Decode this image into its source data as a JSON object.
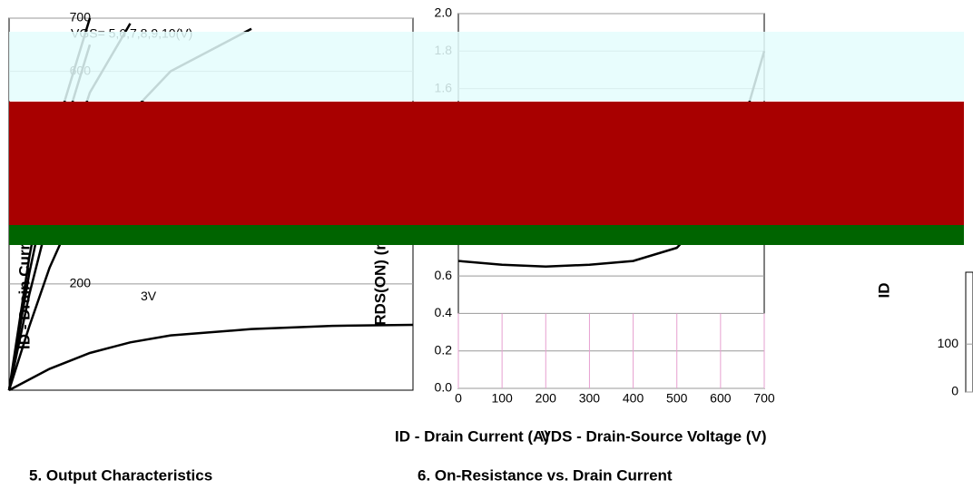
{
  "chart_data": [
    {
      "type": "line",
      "annotation": "VGS= 5,6,7,8,9,10(V)",
      "ylabel": "ID - Drain Current (A)",
      "xlabel": "ID - Drain Current (A)",
      "caption": "5. Output Characteristics",
      "xlim": [
        0,
        10
      ],
      "ylim": [
        0,
        700
      ],
      "yticks": [
        200,
        600,
        700
      ],
      "x": [
        0,
        0.5,
        1,
        2,
        3,
        4,
        6,
        8,
        10
      ],
      "series": [
        {
          "color": "#000000",
          "values": [
            0,
            250,
            450,
            700,
            null,
            null,
            null,
            null,
            null
          ]
        },
        {
          "color": "#000000",
          "values": [
            0,
            220,
            400,
            650,
            null,
            null,
            null,
            null,
            null
          ]
        },
        {
          "color": "#000000",
          "values": [
            0,
            180,
            330,
            560,
            690,
            null,
            null,
            null,
            null
          ]
        },
        {
          "color": "#000000",
          "values": [
            0,
            120,
            230,
            400,
            520,
            600,
            680,
            null,
            null
          ]
        },
        {
          "name": "3V",
          "color": "#000000",
          "values": [
            0,
            20,
            40,
            70,
            90,
            103,
            115,
            121,
            123
          ]
        }
      ]
    },
    {
      "type": "line",
      "ylabel": "RDS(ON) (mΩ)",
      "xlabel": "VDS - Drain-Source Voltage (V)",
      "caption": "6. On-Resistance vs. Drain Current",
      "xlim": [
        0,
        700
      ],
      "xticks": [
        0,
        100,
        200,
        300,
        400,
        500,
        600,
        700
      ],
      "ylim": [
        0,
        2
      ],
      "yticks": [
        {
          "value": 0,
          "label": "0.0"
        },
        0.2,
        0.4,
        0.6,
        1.6,
        1.8,
        {
          "value": 2,
          "label": "2.0"
        }
      ],
      "x": [
        0,
        100,
        200,
        300,
        400,
        500,
        600,
        700
      ],
      "series": [
        {
          "color": "#000000",
          "values": [
            0.68,
            0.66,
            0.65,
            0.66,
            0.68,
            0.75,
            1.0,
            1.8
          ]
        }
      ]
    },
    {
      "type": "line",
      "ylabel": "ID",
      "ylim": [
        0,
        250
      ],
      "yticks": [
        0,
        100
      ],
      "series": []
    }
  ]
}
